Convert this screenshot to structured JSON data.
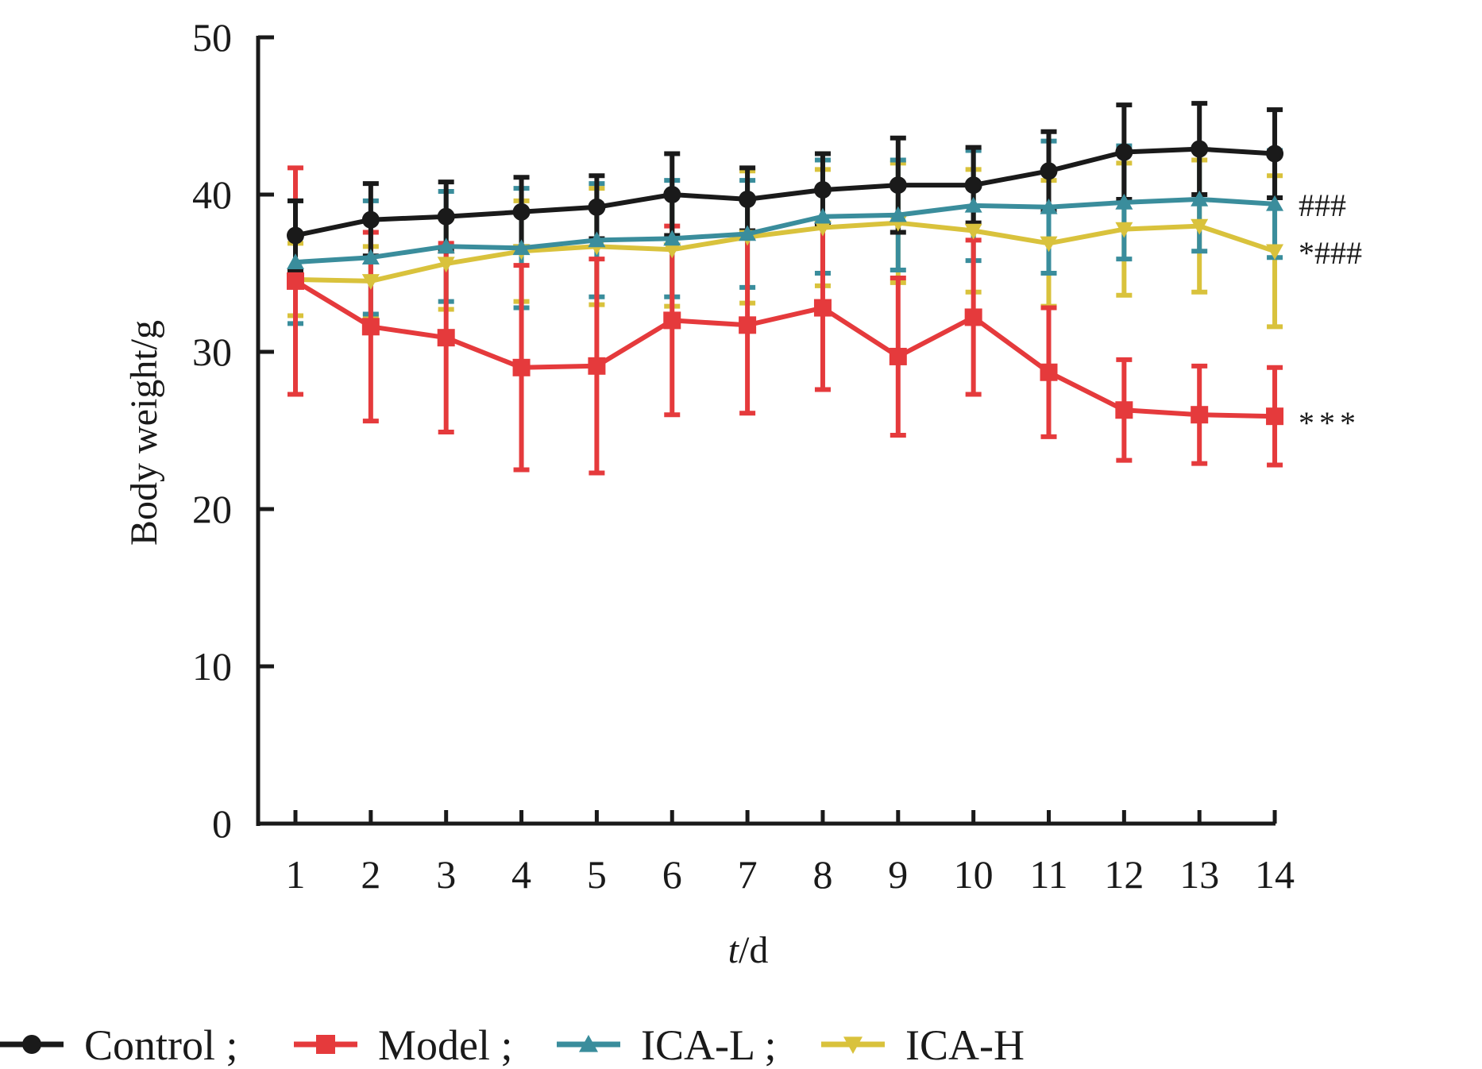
{
  "chart_data": {
    "type": "line",
    "title": "",
    "xlabel_italic": "t",
    "xlabel_rest": "/d",
    "xlabel": "t/d",
    "ylabel": "Body weight/g",
    "xlim": [
      1,
      14
    ],
    "ylim": [
      0,
      50
    ],
    "x": [
      1,
      2,
      3,
      4,
      5,
      6,
      7,
      8,
      9,
      10,
      11,
      12,
      13,
      14
    ],
    "x_tick_labels": [
      "1",
      "2",
      "3",
      "4",
      "5",
      "6",
      "7",
      "8",
      "9",
      "10",
      "11",
      "12",
      "13",
      "14"
    ],
    "y_ticks": [
      0,
      10,
      20,
      30,
      40,
      50
    ],
    "y_tick_labels": [
      "0",
      "10",
      "20",
      "30",
      "40",
      "50"
    ],
    "grid": false,
    "error_bars": "mean ± SD",
    "legend_position": "bottom",
    "series": [
      {
        "name": "Control",
        "legend_label": "Control ;",
        "color": "#1a1a1a",
        "marker": "circle",
        "values": [
          37.4,
          38.4,
          38.6,
          38.9,
          39.2,
          40.0,
          39.7,
          40.3,
          40.6,
          40.6,
          41.5,
          42.7,
          42.9,
          42.6
        ],
        "error": [
          2.2,
          2.3,
          2.2,
          2.2,
          2.0,
          2.6,
          2.0,
          2.3,
          3.0,
          2.4,
          2.5,
          3.0,
          2.9,
          2.8
        ],
        "annotation": ""
      },
      {
        "name": "Model",
        "legend_label": "Model ;",
        "color": "#e53a3c",
        "marker": "square",
        "values": [
          34.5,
          31.6,
          30.9,
          29.0,
          29.1,
          32.0,
          31.7,
          32.8,
          29.7,
          32.2,
          28.7,
          26.3,
          26.0,
          25.9
        ],
        "error": [
          7.2,
          6.0,
          6.0,
          6.5,
          6.8,
          6.0,
          5.6,
          5.2,
          5.0,
          4.9,
          4.1,
          3.2,
          3.1,
          3.1
        ],
        "annotation": "***"
      },
      {
        "name": "ICA-L",
        "legend_label": "ICA-L ;",
        "color": "#3a8d9c",
        "marker": "triangle-up",
        "values": [
          35.7,
          36.0,
          36.7,
          36.6,
          37.1,
          37.2,
          37.5,
          38.6,
          38.7,
          39.3,
          39.2,
          39.5,
          39.7,
          39.4
        ],
        "error": [
          3.9,
          3.6,
          3.5,
          3.8,
          3.6,
          3.7,
          3.4,
          3.6,
          3.5,
          3.5,
          4.2,
          3.6,
          3.3,
          3.4
        ],
        "annotation": "###"
      },
      {
        "name": "ICA-H",
        "legend_label": "ICA-H",
        "color": "#d9c23c",
        "marker": "triangle-down",
        "values": [
          34.6,
          34.5,
          35.6,
          36.4,
          36.7,
          36.5,
          37.3,
          37.9,
          38.2,
          37.7,
          36.9,
          37.8,
          38.0,
          36.4
        ],
        "error": [
          2.3,
          2.2,
          2.9,
          3.2,
          3.7,
          3.6,
          4.2,
          3.7,
          3.8,
          3.9,
          4.0,
          4.2,
          4.2,
          4.8
        ],
        "annotation": "*###"
      }
    ]
  }
}
